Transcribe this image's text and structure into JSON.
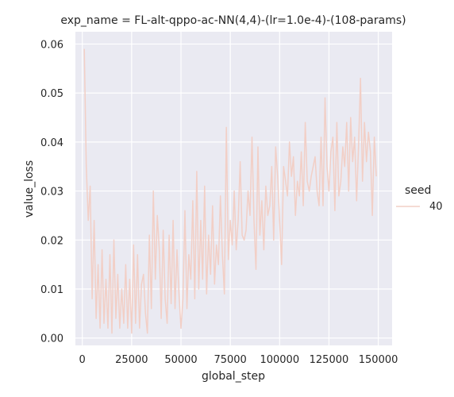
{
  "chart_data": {
    "type": "line",
    "title": "exp_name = FL-alt-qppo-ac-NN(4,4)-(lr=1.0e-4)-(108-params)",
    "xlabel": "global_step",
    "ylabel": "value_loss",
    "xlim": [
      -3500,
      157000
    ],
    "ylim": [
      -0.0015,
      0.0625
    ],
    "x_ticks": [
      0,
      25000,
      50000,
      75000,
      100000,
      125000,
      150000
    ],
    "x_tick_labels": [
      "0",
      "25000",
      "50000",
      "75000",
      "100000",
      "125000",
      "150000"
    ],
    "y_ticks": [
      0.0,
      0.01,
      0.02,
      0.03,
      0.04,
      0.05,
      0.06
    ],
    "y_tick_labels": [
      "0.00",
      "0.01",
      "0.02",
      "0.03",
      "0.04",
      "0.05",
      "0.06"
    ],
    "grid": true,
    "legend": {
      "title": "seed",
      "placement": "right"
    },
    "series": [
      {
        "name": "40",
        "color": "#f2cfc6",
        "x": [
          1000,
          2000,
          3000,
          4000,
          5000,
          6000,
          7000,
          8000,
          9000,
          10000,
          11000,
          12000,
          13000,
          14000,
          15000,
          16000,
          17000,
          18000,
          19000,
          20000,
          21000,
          22000,
          23000,
          24000,
          25000,
          26000,
          27000,
          28000,
          29000,
          30000,
          31000,
          32000,
          33000,
          34000,
          35000,
          36000,
          37000,
          38000,
          39000,
          40000,
          41000,
          42000,
          43000,
          44000,
          45000,
          46000,
          47000,
          48000,
          49000,
          50000,
          51000,
          52000,
          53000,
          54000,
          55000,
          56000,
          57000,
          58000,
          59000,
          60000,
          61000,
          62000,
          63000,
          64000,
          65000,
          66000,
          67000,
          68000,
          69000,
          70000,
          71000,
          72000,
          73000,
          74000,
          75000,
          76000,
          77000,
          78000,
          79000,
          80000,
          81000,
          82000,
          83000,
          84000,
          85000,
          86000,
          87000,
          88000,
          89000,
          90000,
          91000,
          92000,
          93000,
          94000,
          95000,
          96000,
          97000,
          98000,
          99000,
          100000,
          101000,
          102000,
          103000,
          104000,
          105000,
          106000,
          107000,
          108000,
          109000,
          110000,
          111000,
          112000,
          113000,
          114000,
          115000,
          116000,
          117000,
          118000,
          119000,
          120000,
          121000,
          122000,
          123000,
          124000,
          125000,
          126000,
          127000,
          128000,
          129000,
          130000,
          131000,
          132000,
          133000,
          134000,
          135000,
          136000,
          137000,
          138000,
          139000,
          140000,
          141000,
          142000,
          143000,
          144000,
          145000,
          146000,
          147000,
          148000,
          149000
        ],
        "y": [
          0.059,
          0.035,
          0.024,
          0.031,
          0.008,
          0.024,
          0.004,
          0.015,
          0.002,
          0.018,
          0.003,
          0.012,
          0.002,
          0.017,
          0.001,
          0.02,
          0.004,
          0.013,
          0.002,
          0.01,
          0.003,
          0.015,
          0.002,
          0.012,
          0.001,
          0.019,
          0.003,
          0.017,
          0.002,
          0.011,
          0.013,
          0.005,
          0.001,
          0.021,
          0.006,
          0.03,
          0.012,
          0.025,
          0.018,
          0.004,
          0.022,
          0.008,
          0.003,
          0.021,
          0.007,
          0.024,
          0.006,
          0.018,
          0.009,
          0.002,
          0.008,
          0.026,
          0.006,
          0.017,
          0.012,
          0.028,
          0.008,
          0.034,
          0.01,
          0.024,
          0.012,
          0.031,
          0.009,
          0.021,
          0.013,
          0.027,
          0.011,
          0.019,
          0.015,
          0.029,
          0.017,
          0.009,
          0.043,
          0.016,
          0.024,
          0.019,
          0.03,
          0.018,
          0.024,
          0.036,
          0.021,
          0.02,
          0.022,
          0.03,
          0.025,
          0.041,
          0.024,
          0.014,
          0.039,
          0.021,
          0.028,
          0.018,
          0.031,
          0.025,
          0.027,
          0.035,
          0.02,
          0.039,
          0.033,
          0.024,
          0.015,
          0.035,
          0.032,
          0.029,
          0.04,
          0.033,
          0.037,
          0.025,
          0.032,
          0.029,
          0.038,
          0.027,
          0.044,
          0.032,
          0.03,
          0.033,
          0.035,
          0.037,
          0.03,
          0.027,
          0.041,
          0.027,
          0.049,
          0.035,
          0.03,
          0.038,
          0.041,
          0.026,
          0.044,
          0.029,
          0.032,
          0.039,
          0.035,
          0.044,
          0.03,
          0.045,
          0.036,
          0.041,
          0.028,
          0.039,
          0.053,
          0.032,
          0.044,
          0.036,
          0.042,
          0.038,
          0.025,
          0.041,
          0.033
        ]
      }
    ]
  }
}
